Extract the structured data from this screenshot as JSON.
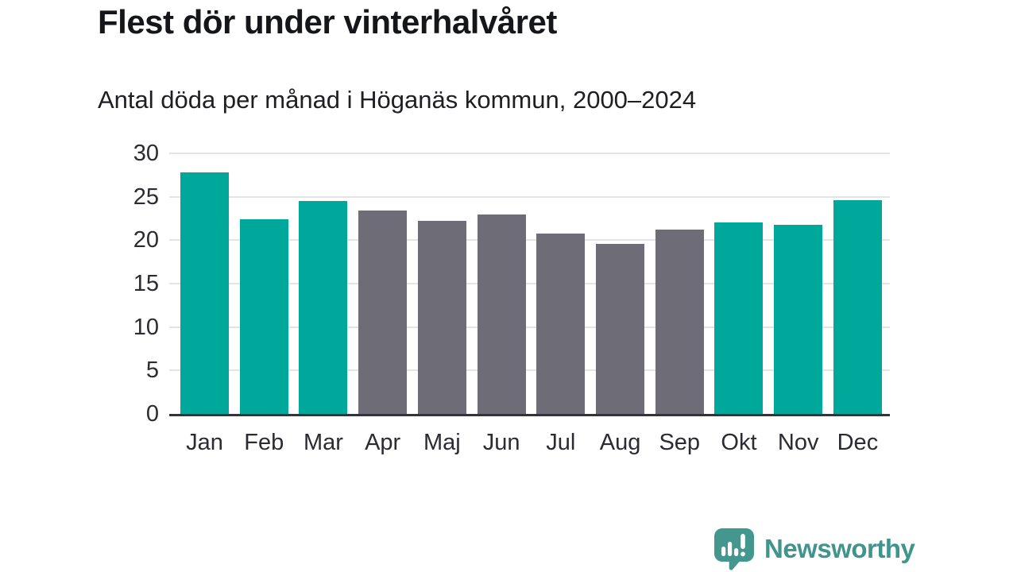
{
  "header": {
    "title": "Flest dör under vinterhalvåret",
    "subtitle": "Antal döda per månad i Höganäs kommun, 2000–2024"
  },
  "chart_data": {
    "type": "bar",
    "title": "Flest dör under vinterhalvåret",
    "subtitle": "Antal döda per månad i Höganäs kommun, 2000–2024",
    "categories": [
      "Jan",
      "Feb",
      "Mar",
      "Apr",
      "Maj",
      "Jun",
      "Jul",
      "Aug",
      "Sep",
      "Okt",
      "Nov",
      "Dec"
    ],
    "values": [
      27.8,
      22.4,
      24.5,
      23.4,
      22.2,
      23.0,
      20.8,
      19.6,
      21.2,
      22.0,
      21.8,
      24.6
    ],
    "bar_colors": [
      "#00A79B",
      "#00A79B",
      "#00A79B",
      "#6E6D77",
      "#6E6D77",
      "#6E6D77",
      "#6E6D77",
      "#6E6D77",
      "#6E6D77",
      "#00A79B",
      "#00A79B",
      "#00A79B"
    ],
    "highlight_color": "#00A79B",
    "muted_color": "#6E6D77",
    "xlabel": "",
    "ylabel": "",
    "ylim": [
      0,
      30
    ],
    "yticks": [
      0,
      5,
      10,
      15,
      20,
      25,
      30
    ],
    "grid": true,
    "legend": false
  },
  "branding": {
    "logo_text": "Newsworthy",
    "logo_color": "#3F948C",
    "logo_icon": "speech-bubble-bar-chart-icon"
  }
}
